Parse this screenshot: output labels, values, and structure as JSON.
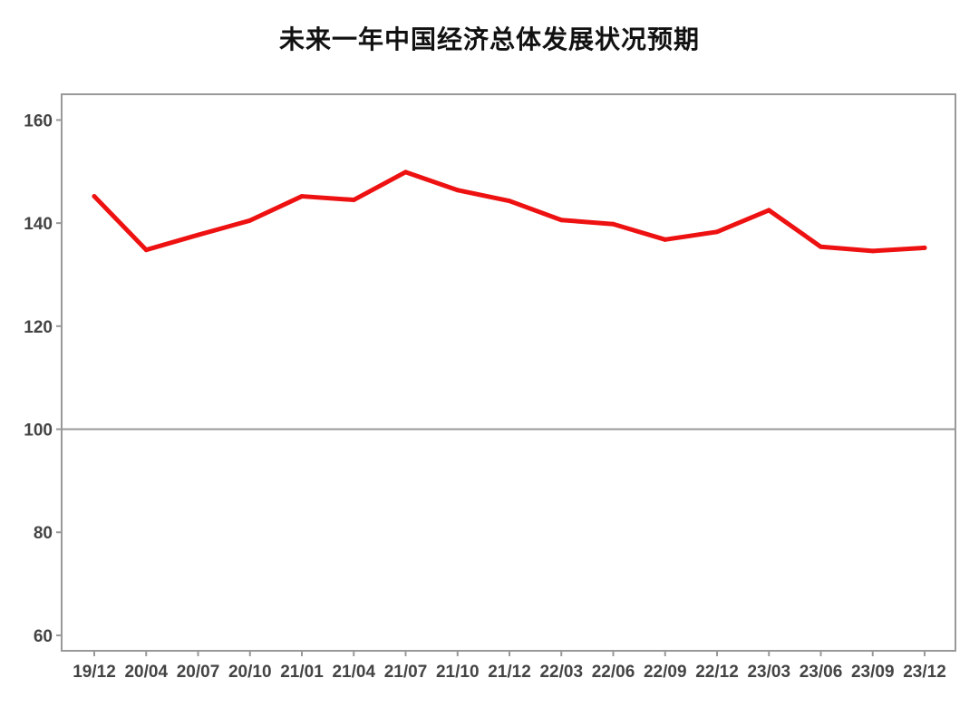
{
  "chart_data": {
    "type": "line",
    "title": "未来一年中国经济总体发展状况预期",
    "xlabel": "",
    "ylabel": "",
    "categories": [
      "19/12",
      "20/04",
      "20/07",
      "20/10",
      "21/01",
      "21/04",
      "21/07",
      "21/10",
      "21/12",
      "22/03",
      "22/06",
      "22/09",
      "22/12",
      "23/03",
      "23/06",
      "23/09",
      "23/12"
    ],
    "series": [
      {
        "values": [
          145.2,
          134.8,
          137.7,
          140.5,
          145.2,
          144.5,
          149.9,
          146.4,
          144.3,
          140.6,
          139.8,
          136.8,
          138.3,
          142.5,
          135.4,
          134.6,
          135.2
        ]
      }
    ],
    "ylim": [
      57,
      165
    ],
    "yticks": [
      60,
      80,
      100,
      120,
      140,
      160
    ],
    "reference_line": 100,
    "grid": false,
    "line_color": "#ee1111",
    "reference_color": "#999999",
    "frame_color": "#999999"
  }
}
